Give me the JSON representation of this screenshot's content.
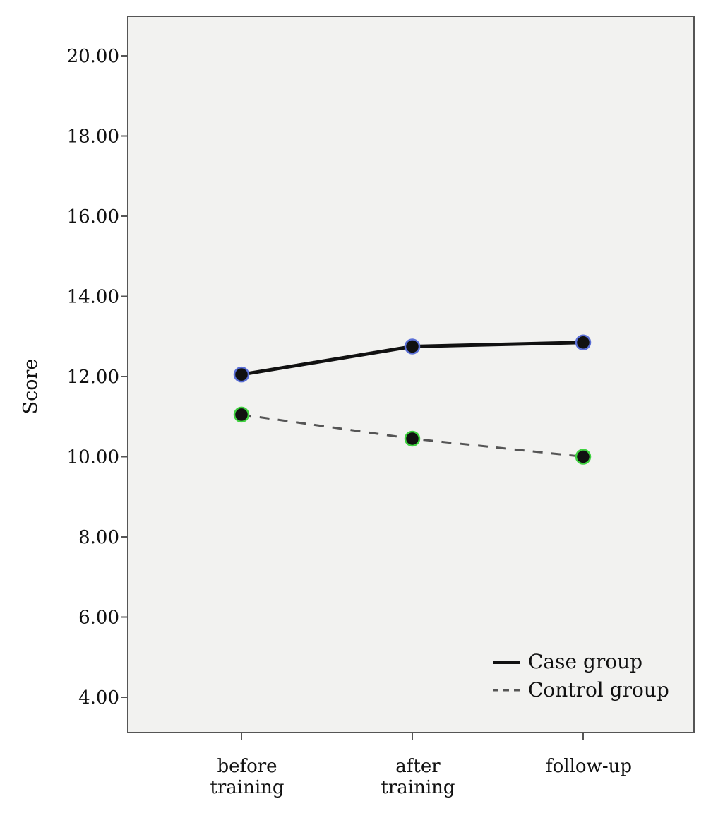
{
  "chart_data": {
    "type": "line",
    "title": "",
    "xlabel": "",
    "ylabel": "Score",
    "categories": [
      [
        "before",
        "training"
      ],
      [
        "after",
        "training"
      ],
      [
        "follow-up"
      ]
    ],
    "y_ticks": [
      "4.00",
      "6.00",
      "8.00",
      "10.00",
      "12.00",
      "14.00",
      "16.00",
      "18.00",
      "20.00"
    ],
    "ylim": [
      3.0,
      21.0
    ],
    "grid": false,
    "legend_position": "bottom-right",
    "series": [
      {
        "name": "Case group",
        "style": "solid",
        "values": [
          12.05,
          12.75,
          12.85
        ],
        "line_color": "#111111",
        "marker_fill": "#111111",
        "marker_outline": "#5a6fd6"
      },
      {
        "name": "Control group",
        "style": "dashed",
        "values": [
          11.05,
          10.45,
          10.0
        ],
        "line_color": "#555555",
        "marker_fill": "#111111",
        "marker_outline": "#3fd13f"
      }
    ],
    "colors": {
      "plot_background": "#f2f2f0",
      "axis": "#555555"
    }
  }
}
